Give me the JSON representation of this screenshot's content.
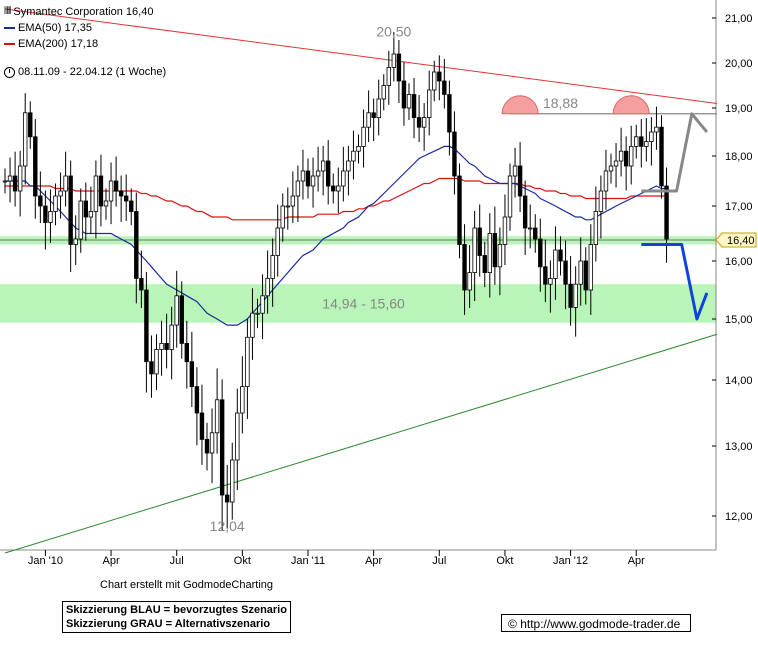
{
  "legend": {
    "title": "Symantec Corporation 16,40",
    "ema50": "EMA(50) 17,35",
    "ema200": "EMA(200) 17,18",
    "period": "08.11.09 - 22.04.12 (1 Woche)",
    "colors": {
      "ema50": "#1a2a9c",
      "ema200": "#e01010"
    }
  },
  "credit": "Chart erstellt mit GodmodeCharting",
  "scenario": {
    "blue": "Skizzierung BLAU = bevorzugtes Szenario",
    "gray": "Skizzierung GRAU = Alternativszenario"
  },
  "source": "http://www.godmode-trader.de",
  "source_icon": "copyright-icon",
  "chart_data": {
    "type": "candlestick",
    "ylim": [
      11.6,
      21.2
    ],
    "xlim": [
      0,
      141
    ],
    "y_ticks": [
      "21,00",
      "20,00",
      "19,00",
      "18,00",
      "17,00",
      "16,00",
      "15,00",
      "14,00",
      "13,00",
      "12,00"
    ],
    "y_tick_values": [
      21,
      20,
      19,
      18,
      17,
      16,
      15,
      14,
      13,
      12
    ],
    "x_ticks": [
      "Jan '10",
      "Apr",
      "Jul",
      "Okt",
      "Jan '11",
      "Apr",
      "Jul",
      "Okt",
      "Jan '12",
      "Apr"
    ],
    "x_tick_weeks": [
      8,
      21,
      34,
      47,
      60,
      73,
      86,
      99,
      112,
      125
    ],
    "current_price": 16.4,
    "current_price_label": "16,40",
    "annotations": [
      {
        "text": "20,50",
        "week": 77,
        "value": 20.5
      },
      {
        "text": "18,88",
        "week": 110,
        "value": 18.88
      },
      {
        "text": "12,04",
        "week": 44,
        "value": 12.04
      },
      {
        "text": "14,94 - 15,60",
        "week": 71,
        "value": 15.27
      }
    ],
    "zones": [
      {
        "from": 14.94,
        "to": 15.6,
        "label": "14,94 - 15,60"
      },
      {
        "from": 16.3,
        "to": 16.45
      }
    ],
    "resistance_line": {
      "x": [
        0,
        141
      ],
      "y": [
        21.2,
        19.1
      ]
    },
    "support_line": {
      "x": [
        0,
        141
      ],
      "y": [
        11.5,
        14.75
      ]
    },
    "horizontal_line": {
      "x": [
        100,
        141
      ],
      "y": [
        18.88,
        18.88
      ]
    },
    "arcs": [
      {
        "week": 102,
        "value": 18.88
      },
      {
        "week": 124,
        "value": 18.88
      }
    ],
    "close": [
      17.5,
      17.6,
      17.3,
      17.8,
      18.9,
      18.4,
      17.2,
      17.0,
      16.7,
      16.9,
      17.2,
      17.3,
      17.6,
      16.3,
      16.4,
      17.1,
      16.8,
      16.9,
      17.6,
      17.0,
      17.1,
      17.5,
      17.3,
      17.2,
      17.1,
      16.9,
      15.7,
      15.5,
      14.3,
      14.1,
      14.5,
      14.6,
      14.5,
      14.9,
      15.4,
      14.6,
      14.3,
      13.9,
      13.5,
      13.1,
      12.9,
      13.2,
      13.7,
      12.3,
      12.2,
      12.8,
      13.5,
      13.9,
      14.7,
      15.1,
      15.1,
      15.4,
      15.7,
      16.1,
      16.6,
      17.0,
      17.0,
      17.2,
      17.5,
      17.7,
      17.4,
      17.6,
      17.7,
      17.9,
      17.4,
      17.3,
      17.4,
      17.7,
      17.9,
      18.1,
      18.2,
      18.6,
      18.9,
      18.8,
      19.2,
      19.5,
      19.9,
      20.2,
      19.6,
      19.0,
      19.3,
      18.8,
      18.6,
      18.8,
      19.4,
      19.8,
      19.6,
      19.3,
      18.5,
      17.6,
      16.3,
      15.5,
      15.8,
      16.6,
      16.1,
      15.8,
      16.5,
      15.9,
      16.3,
      16.8,
      17.6,
      17.8,
      17.2,
      16.6,
      16.6,
      16.4,
      15.9,
      15.6,
      15.7,
      16.2,
      16.0,
      15.6,
      15.2,
      15.6,
      16.0,
      15.5,
      16.3,
      16.9,
      17.3,
      17.7,
      17.8,
      17.9,
      18.1,
      17.8,
      18.2,
      18.4,
      18.2,
      18.3,
      18.5,
      18.6,
      17.4,
      16.4
    ],
    "ema50": [
      17.5,
      17.5,
      17.5,
      17.5,
      17.5,
      17.4,
      17.4,
      17.3,
      17.2,
      17.1,
      17.0,
      16.9,
      16.8,
      16.7,
      16.6,
      16.55,
      16.5,
      16.5,
      16.5,
      16.5,
      16.5,
      16.5,
      16.45,
      16.4,
      16.35,
      16.3,
      16.2,
      16.1,
      16.0,
      15.9,
      15.8,
      15.7,
      15.6,
      15.55,
      15.5,
      15.45,
      15.4,
      15.35,
      15.3,
      15.2,
      15.1,
      15.05,
      15.0,
      14.95,
      14.9,
      14.9,
      14.9,
      14.95,
      15.0,
      15.1,
      15.2,
      15.3,
      15.4,
      15.5,
      15.6,
      15.7,
      15.8,
      15.9,
      16.0,
      16.1,
      16.15,
      16.2,
      16.3,
      16.4,
      16.45,
      16.5,
      16.55,
      16.6,
      16.7,
      16.75,
      16.8,
      16.9,
      17.0,
      17.05,
      17.15,
      17.25,
      17.35,
      17.45,
      17.55,
      17.65,
      17.75,
      17.85,
      17.95,
      18.0,
      18.05,
      18.1,
      18.15,
      18.2,
      18.2,
      18.15,
      18.05,
      17.95,
      17.85,
      17.8,
      17.7,
      17.6,
      17.55,
      17.5,
      17.45,
      17.45,
      17.45,
      17.45,
      17.4,
      17.35,
      17.3,
      17.25,
      17.15,
      17.1,
      17.05,
      17.0,
      16.95,
      16.9,
      16.85,
      16.8,
      16.8,
      16.75,
      16.75,
      16.8,
      16.85,
      16.9,
      16.95,
      17.0,
      17.05,
      17.1,
      17.15,
      17.2,
      17.25,
      17.3,
      17.35,
      17.4,
      17.35,
      17.35
    ],
    "ema200": [
      17.4,
      17.4,
      17.4,
      17.4,
      17.4,
      17.4,
      17.4,
      17.4,
      17.4,
      17.4,
      17.35,
      17.35,
      17.35,
      17.35,
      17.3,
      17.3,
      17.3,
      17.3,
      17.3,
      17.3,
      17.3,
      17.3,
      17.3,
      17.3,
      17.3,
      17.3,
      17.3,
      17.25,
      17.25,
      17.2,
      17.2,
      17.15,
      17.1,
      17.1,
      17.05,
      17.0,
      17.0,
      16.95,
      16.9,
      16.9,
      16.85,
      16.8,
      16.8,
      16.8,
      16.8,
      16.75,
      16.75,
      16.75,
      16.75,
      16.75,
      16.75,
      16.75,
      16.75,
      16.75,
      16.75,
      16.75,
      16.8,
      16.8,
      16.8,
      16.8,
      16.8,
      16.8,
      16.85,
      16.85,
      16.85,
      16.85,
      16.85,
      16.9,
      16.9,
      16.9,
      16.95,
      16.95,
      17.0,
      17.0,
      17.05,
      17.1,
      17.1,
      17.15,
      17.2,
      17.25,
      17.3,
      17.35,
      17.4,
      17.45,
      17.45,
      17.5,
      17.55,
      17.55,
      17.55,
      17.55,
      17.55,
      17.5,
      17.5,
      17.5,
      17.5,
      17.45,
      17.45,
      17.45,
      17.45,
      17.45,
      17.45,
      17.45,
      17.45,
      17.4,
      17.4,
      17.35,
      17.35,
      17.3,
      17.3,
      17.3,
      17.25,
      17.25,
      17.2,
      17.2,
      17.2,
      17.15,
      17.15,
      17.15,
      17.15,
      17.15,
      17.15,
      17.15,
      17.15,
      17.15,
      17.2,
      17.2,
      17.2,
      17.2,
      17.2,
      17.2,
      17.2,
      17.2
    ],
    "blue_scenario": {
      "x": [
        126,
        134,
        137,
        139
      ],
      "y": [
        16.3,
        16.3,
        15.0,
        15.45
      ]
    },
    "gray_scenario": {
      "x": [
        126,
        133,
        136,
        139
      ],
      "y": [
        17.3,
        17.3,
        18.88,
        18.5
      ]
    }
  }
}
